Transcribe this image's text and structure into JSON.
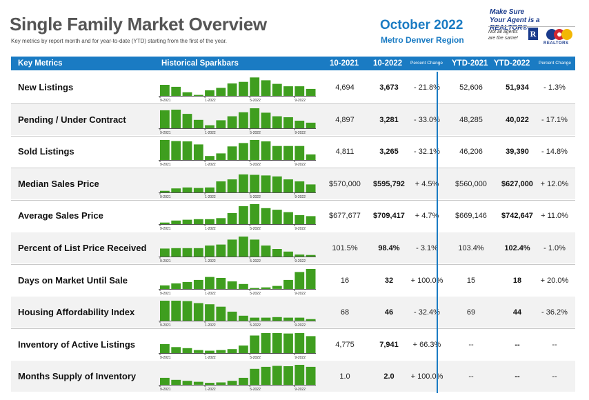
{
  "header": {
    "title": "Single Family Market Overview",
    "subtitle": "Key metrics by report month and for year-to-date (YTD) starting from the first of the year.",
    "period": "October 2022",
    "region": "Metro Denver Region"
  },
  "brand": {
    "line1": "Make Sure",
    "line2": "Your Agent is a REALTOR®",
    "note1": "Not all agents",
    "note2": "are the same!",
    "r_mark": "R",
    "logo_text": "REALTORS"
  },
  "columns": {
    "metric": "Key Metrics",
    "spark": "Historical Sparkbars",
    "m2021": "10-2021",
    "m2022": "10-2022",
    "pct": "Percent Change",
    "ytd2021": "YTD-2021",
    "ytd2022": "YTD-2022",
    "ytdpct": "Percent Change"
  },
  "colors": {
    "accent": "#1a7bc3",
    "bar": "#3f9e1f"
  },
  "chart_data": {
    "type": "bar",
    "categories": [
      "9-2021",
      "10-2021",
      "11-2021",
      "12-2021",
      "1-2022",
      "2-2022",
      "3-2022",
      "4-2022",
      "5-2022",
      "6-2022",
      "7-2022",
      "8-2022",
      "9-2022",
      "10-2022"
    ],
    "tick_labels": [
      "9-2021",
      "1-2022",
      "5-2022",
      "9-2022"
    ],
    "tick_index": [
      0,
      4,
      8,
      12
    ],
    "series": [
      {
        "name": "New Listings",
        "values": [
          0.55,
          0.45,
          0.18,
          0.05,
          0.28,
          0.4,
          0.62,
          0.7,
          0.92,
          0.78,
          0.6,
          0.48,
          0.48,
          0.35
        ]
      },
      {
        "name": "Pending / Under Contract",
        "values": [
          0.9,
          0.93,
          0.72,
          0.42,
          0.15,
          0.4,
          0.6,
          0.8,
          1.0,
          0.78,
          0.6,
          0.55,
          0.38,
          0.28
        ]
      },
      {
        "name": "Sold Listings",
        "values": [
          1.0,
          0.95,
          0.93,
          0.78,
          0.2,
          0.33,
          0.68,
          0.85,
          1.0,
          0.93,
          0.7,
          0.7,
          0.7,
          0.28
        ]
      },
      {
        "name": "Median Sales Price",
        "values": [
          0.08,
          0.2,
          0.25,
          0.22,
          0.25,
          0.55,
          0.65,
          0.9,
          0.88,
          0.85,
          0.8,
          0.65,
          0.55,
          0.4
        ]
      },
      {
        "name": "Average Sales Price",
        "values": [
          0.08,
          0.18,
          0.22,
          0.25,
          0.25,
          0.3,
          0.55,
          0.9,
          1.0,
          0.8,
          0.72,
          0.6,
          0.45,
          0.4
        ]
      },
      {
        "name": "Percent of List Price Received",
        "values": [
          0.4,
          0.42,
          0.42,
          0.42,
          0.55,
          0.6,
          0.85,
          1.0,
          0.85,
          0.55,
          0.38,
          0.25,
          0.1,
          0.08
        ]
      },
      {
        "name": "Days on Market Until Sale",
        "values": [
          0.18,
          0.28,
          0.35,
          0.45,
          0.6,
          0.55,
          0.38,
          0.25,
          0.05,
          0.08,
          0.15,
          0.45,
          0.85,
          1.0
        ]
      },
      {
        "name": "Housing Affordability Index",
        "values": [
          1.0,
          1.0,
          0.98,
          0.88,
          0.82,
          0.7,
          0.45,
          0.25,
          0.15,
          0.15,
          0.18,
          0.15,
          0.15,
          0.08
        ]
      },
      {
        "name": "Inventory of Active Listings",
        "values": [
          0.45,
          0.3,
          0.25,
          0.15,
          0.12,
          0.15,
          0.2,
          0.38,
          0.88,
          1.0,
          1.0,
          0.98,
          1.0,
          0.85
        ]
      },
      {
        "name": "Months Supply of Inventory",
        "values": [
          0.35,
          0.25,
          0.2,
          0.15,
          0.1,
          0.12,
          0.2,
          0.35,
          0.8,
          0.9,
          0.95,
          0.93,
          1.0,
          0.9
        ]
      }
    ]
  },
  "rows": [
    {
      "metric": "New Listings",
      "m2021": "4,694",
      "m2022": "3,673",
      "pct": "- 21.8%",
      "ytd2021": "52,606",
      "ytd2022": "51,934",
      "ytdpct": "- 1.3%"
    },
    {
      "metric": "Pending / Under Contract",
      "m2021": "4,897",
      "m2022": "3,281",
      "pct": "- 33.0%",
      "ytd2021": "48,285",
      "ytd2022": "40,022",
      "ytdpct": "- 17.1%"
    },
    {
      "metric": "Sold Listings",
      "m2021": "4,811",
      "m2022": "3,265",
      "pct": "- 32.1%",
      "ytd2021": "46,206",
      "ytd2022": "39,390",
      "ytdpct": "- 14.8%"
    },
    {
      "metric": "Median Sales Price",
      "m2021": "$570,000",
      "m2022": "$595,792",
      "pct": "+ 4.5%",
      "ytd2021": "$560,000",
      "ytd2022": "$627,000",
      "ytdpct": "+ 12.0%"
    },
    {
      "metric": "Average Sales Price",
      "m2021": "$677,677",
      "m2022": "$709,417",
      "pct": "+ 4.7%",
      "ytd2021": "$669,146",
      "ytd2022": "$742,647",
      "ytdpct": "+ 11.0%"
    },
    {
      "metric": "Percent of List Price Received",
      "m2021": "101.5%",
      "m2022": "98.4%",
      "pct": "- 3.1%",
      "ytd2021": "103.4%",
      "ytd2022": "102.4%",
      "ytdpct": "- 1.0%"
    },
    {
      "metric": "Days on Market Until Sale",
      "m2021": "16",
      "m2022": "32",
      "pct": "+ 100.0%",
      "ytd2021": "15",
      "ytd2022": "18",
      "ytdpct": "+ 20.0%"
    },
    {
      "metric": "Housing Affordability Index",
      "m2021": "68",
      "m2022": "46",
      "pct": "- 32.4%",
      "ytd2021": "69",
      "ytd2022": "44",
      "ytdpct": "- 36.2%"
    },
    {
      "metric": "Inventory of Active Listings",
      "m2021": "4,775",
      "m2022": "7,941",
      "pct": "+ 66.3%",
      "ytd2021": "--",
      "ytd2022": "--",
      "ytdpct": "--"
    },
    {
      "metric": "Months Supply of Inventory",
      "m2021": "1.0",
      "m2022": "2.0",
      "pct": "+ 100.0%",
      "ytd2021": "--",
      "ytd2022": "--",
      "ytdpct": "--"
    }
  ]
}
